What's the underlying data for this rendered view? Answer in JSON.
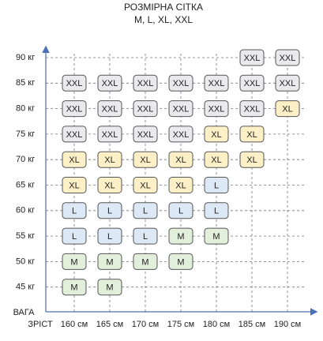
{
  "header": {
    "title": "РОЗМІРНА СІТКА",
    "subtitle": "M, L, XL, XXL"
  },
  "y_axis_label": "ВАГА",
  "x_axis_label": "ЗРІСТ",
  "y_labels": [
    "90 кг",
    "85 кг",
    "80 кг",
    "75 кг",
    "70 кг",
    "65 кг",
    "60 кг",
    "55 кг",
    "50 кг",
    "45 кг"
  ],
  "x_labels": [
    "160 см",
    "165 см",
    "170 см",
    "175 см",
    "180 см",
    "185 см",
    "190 см"
  ],
  "size_colors": {
    "XXL": "#e9e9ee",
    "XL": "#fdf0c6",
    "L": "#dce8f6",
    "M": "#e2efda"
  },
  "grid": [
    [
      null,
      null,
      null,
      null,
      null,
      "XXL",
      "XXL"
    ],
    [
      "XXL",
      "XXL",
      "XXL",
      "XXL",
      "XXL",
      "XXL",
      "XXL"
    ],
    [
      "XXL",
      "XXL",
      "XXL",
      "XXL",
      "XXL",
      "XXL",
      "XL"
    ],
    [
      "XXL",
      "XXL",
      "XXL",
      "XXL",
      "XL",
      "XL",
      null
    ],
    [
      "XL",
      "XL",
      "XL",
      "XL",
      "XL",
      "XL",
      null
    ],
    [
      "XL",
      "XL",
      "XL",
      "XL",
      "L",
      null,
      null
    ],
    [
      "L",
      "L",
      "L",
      "L",
      "L",
      null,
      null
    ],
    [
      "L",
      "L",
      "L",
      "M",
      "M",
      null,
      null
    ],
    [
      "M",
      "M",
      "M",
      "M",
      null,
      null,
      null
    ],
    [
      "M",
      "M",
      null,
      null,
      null,
      null,
      null
    ]
  ]
}
